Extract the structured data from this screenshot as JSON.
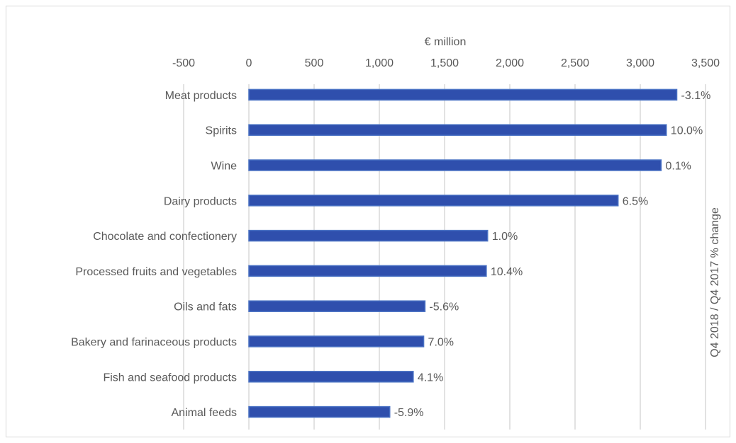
{
  "chart_data": {
    "type": "bar",
    "orientation": "horizontal",
    "title": "",
    "xlabel": "€ million",
    "ylabel": "",
    "secondary_axis_label": "Q4 2018 / Q4 2017 % change",
    "xlim": [
      -500,
      3500
    ],
    "xticks": [
      -500,
      0,
      500,
      1000,
      1500,
      2000,
      2500,
      3000,
      3500
    ],
    "xtick_labels": [
      "-500",
      "0",
      "500",
      "1,000",
      "1,500",
      "2,000",
      "2,500",
      "3,000",
      "3,500"
    ],
    "grid": true,
    "legend": "none",
    "bar_color": "#2f4fad",
    "bar_edge_color": "#4a72c4",
    "categories": [
      "Meat products",
      "Spirits",
      "Wine",
      "Dairy products",
      "Chocolate and confectionery",
      "Processed fruits and vegetables",
      "Oils and fats",
      "Bakery and farinaceous products",
      "Fish and seafood products",
      "Animal feeds"
    ],
    "values": [
      3280,
      3200,
      3160,
      2830,
      1830,
      1820,
      1350,
      1340,
      1260,
      1080
    ],
    "data_labels": [
      "-3.1%",
      "10.0%",
      "0.1%",
      "6.5%",
      "1.0%",
      "10.4%",
      "-5.6%",
      "7.0%",
      "4.1%",
      "-5.9%"
    ]
  }
}
